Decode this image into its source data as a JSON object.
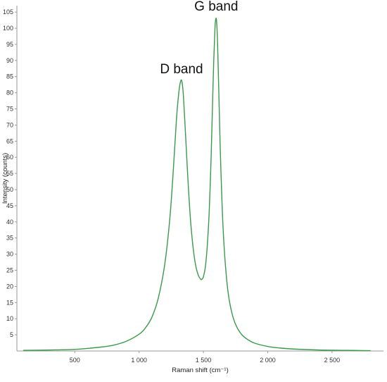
{
  "chart_data": {
    "type": "line",
    "title": "",
    "xlabel": "Raman shift (cm⁻¹)",
    "ylabel": "Intensity (counts)",
    "xlim": [
      50,
      2900
    ],
    "ylim": [
      0,
      107
    ],
    "xticks": [
      500,
      1000,
      1500,
      2000,
      2500
    ],
    "xtick_labels": [
      "500",
      "1 000",
      "1 500",
      "2 000",
      "2 500"
    ],
    "yticks": [
      5,
      10,
      15,
      20,
      25,
      30,
      35,
      40,
      45,
      50,
      55,
      60,
      65,
      70,
      75,
      80,
      85,
      90,
      95,
      100,
      105
    ],
    "ytick_labels": [
      "5",
      "10",
      "15",
      "20",
      "25",
      "30",
      "35",
      "40",
      "45",
      "50",
      "55",
      "60",
      "65",
      "70",
      "75",
      "80",
      "85",
      "90",
      "95",
      "100",
      "105"
    ],
    "grid": false,
    "line_color": "#3a9a4a",
    "series": [
      {
        "x": [
          100,
          300,
          500,
          700,
          800,
          900,
          1000,
          1050,
          1100,
          1150,
          1200,
          1240,
          1270,
          1290,
          1310,
          1325,
          1335,
          1345,
          1360,
          1380,
          1400,
          1420,
          1440,
          1460,
          1480,
          1490,
          1500,
          1515,
          1530,
          1545,
          1560,
          1570,
          1580,
          1590,
          1595,
          1600,
          1605,
          1610,
          1620,
          1630,
          1645,
          1660,
          1680,
          1700,
          1730,
          1760,
          1800,
          1850,
          1900,
          2000,
          2100,
          2200,
          2400,
          2600,
          2800
        ],
        "y": [
          0.2,
          0.3,
          0.5,
          1.2,
          1.8,
          3.0,
          5.2,
          7.2,
          10.5,
          16.5,
          27.0,
          41.5,
          58.5,
          71.5,
          80.5,
          83.8,
          83.0,
          78.8,
          68.0,
          53.0,
          40.5,
          32.0,
          26.5,
          23.5,
          22.2,
          22.3,
          23.0,
          26.0,
          32.5,
          43.0,
          60.0,
          75.0,
          89.5,
          100.0,
          102.5,
          103.0,
          100.5,
          95.5,
          80.0,
          64.0,
          45.5,
          33.0,
          22.5,
          16.0,
          10.5,
          7.4,
          5.0,
          3.4,
          2.4,
          1.4,
          0.9,
          0.6,
          0.3,
          0.2,
          0.1
        ]
      }
    ],
    "annotations": [
      {
        "text": "D band",
        "x": 1330,
        "y": 86
      },
      {
        "text": "G band",
        "x": 1600,
        "y": 105.5
      }
    ]
  }
}
